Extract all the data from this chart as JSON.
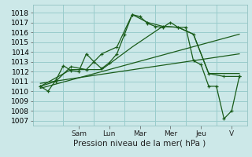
{
  "xlabel": "Pression niveau de la mer( hPa )",
  "ylim": [
    1006.5,
    1018.8
  ],
  "xlim": [
    -0.5,
    13.5
  ],
  "yticks": [
    1007,
    1008,
    1009,
    1010,
    1011,
    1012,
    1013,
    1014,
    1015,
    1016,
    1017,
    1018
  ],
  "day_labels": [
    "Sam",
    "Lun",
    "Mar",
    "Mer",
    "Jeu",
    "V"
  ],
  "day_positions": [
    2.5,
    4.5,
    6.5,
    8.5,
    10.5,
    12.5
  ],
  "day_sep_positions": [
    1.5,
    3.5,
    5.5,
    7.5,
    9.5,
    11.5,
    13.5
  ],
  "bg_color": "#cce8e8",
  "grid_color": "#99cccc",
  "line_color": "#1a5c1a",
  "line1_x": [
    0,
    0.5,
    1,
    1.5,
    2,
    2.5,
    3,
    3.5,
    4,
    4.5,
    5,
    5.5,
    6,
    6.5,
    7,
    7.5,
    8,
    8.5,
    9,
    9.5,
    10,
    10.5,
    11,
    11.5,
    12,
    12.5,
    13
  ],
  "line1_v": [
    1010.5,
    1010.0,
    1011.1,
    1012.6,
    1012.1,
    1012.0,
    1013.8,
    1013.0,
    1012.3,
    1012.9,
    1013.8,
    1015.8,
    1017.8,
    1017.6,
    1016.9,
    1016.6,
    1016.5,
    1017.0,
    1016.5,
    1016.5,
    1013.1,
    1012.7,
    1010.5,
    1010.5,
    1007.2,
    1008.0,
    1011.5
  ],
  "line2_x": [
    0,
    1,
    2,
    3,
    4,
    5,
    6,
    7,
    8,
    9,
    10,
    11,
    12,
    13
  ],
  "line2_v": [
    1010.5,
    1011.0,
    1012.5,
    1012.2,
    1013.8,
    1014.5,
    1017.8,
    1017.0,
    1016.6,
    1016.5,
    1015.8,
    1011.8,
    1011.5,
    1011.5
  ],
  "line3_x": [
    0,
    2,
    4,
    6,
    8,
    9,
    10,
    11,
    12,
    13
  ],
  "line3_v": [
    1010.5,
    1012.2,
    1012.2,
    1014.5,
    1016.6,
    1016.5,
    1015.8,
    1011.8,
    1011.8,
    1011.8
  ],
  "line4_x": [
    0,
    13
  ],
  "line4_v": [
    1010.3,
    1015.8
  ],
  "line5_x": [
    0,
    13
  ],
  "line5_v": [
    1010.8,
    1013.8
  ]
}
